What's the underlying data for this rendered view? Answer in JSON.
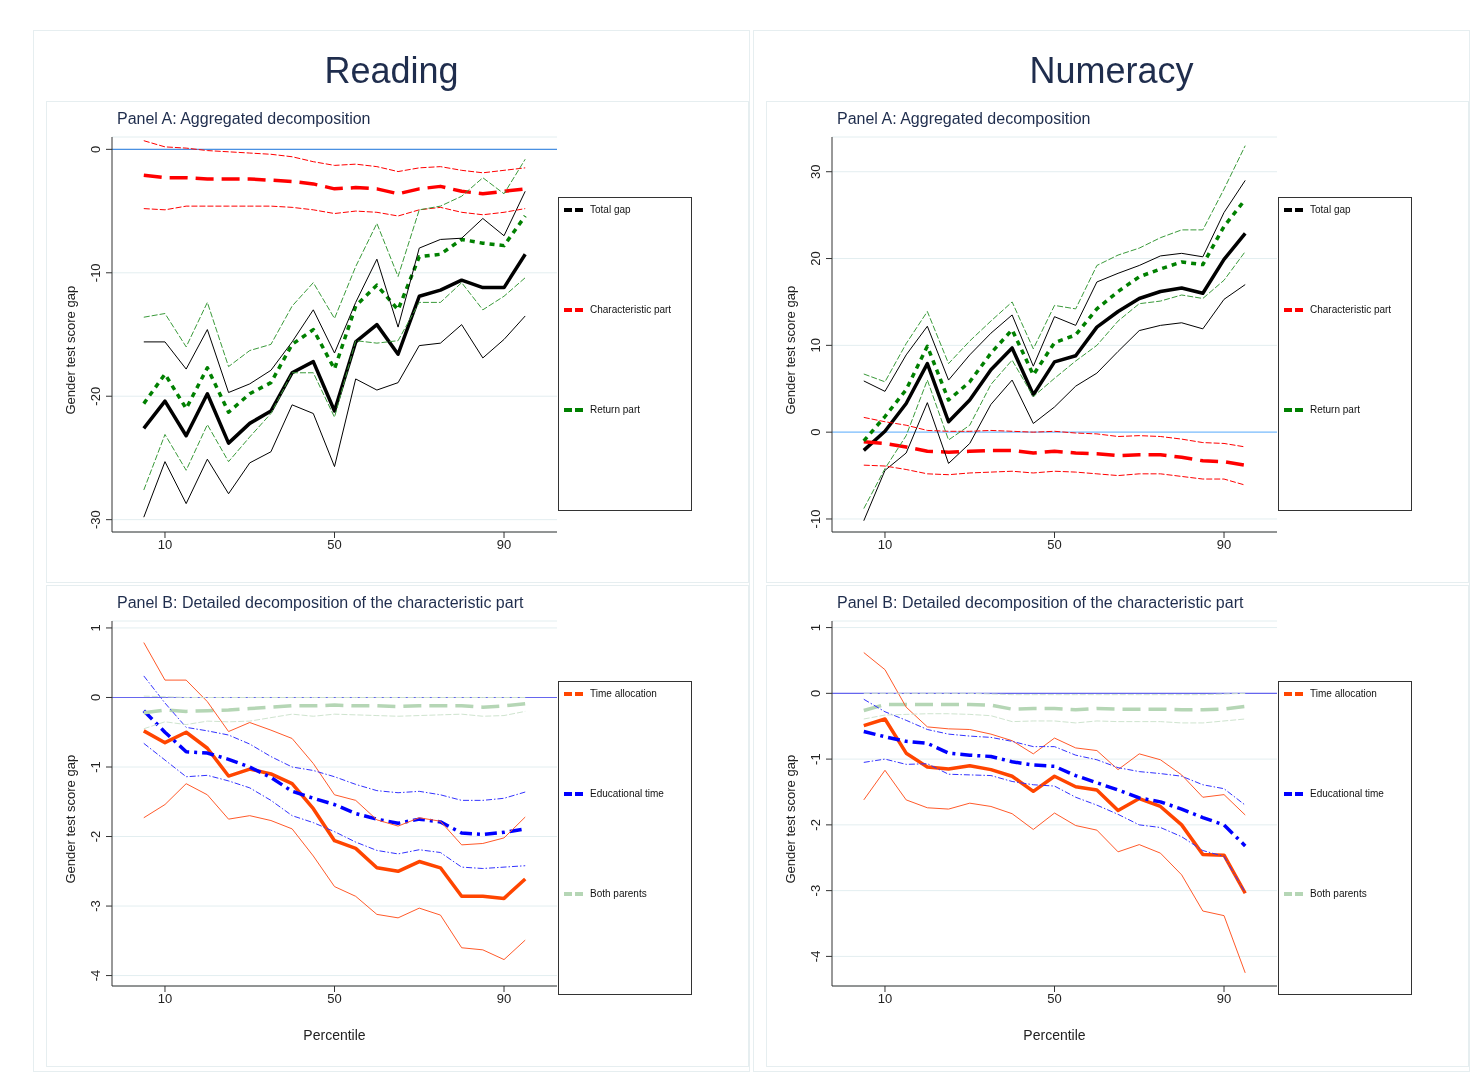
{
  "chart_data": [
    {
      "type": "line",
      "title": "Reading",
      "subtitle": "Panel A: Aggregated decomposition",
      "ylabel": "Gender test score gap",
      "x": [
        5,
        10,
        15,
        20,
        25,
        30,
        35,
        40,
        45,
        50,
        55,
        60,
        65,
        70,
        75,
        80,
        85,
        90,
        95
      ],
      "xlim": [
        -2.5,
        102.5
      ],
      "xticks": [
        10,
        50,
        90
      ],
      "ylim": [
        -31,
        1
      ],
      "yticks": [
        -30,
        -20,
        -10,
        0
      ],
      "grid": "y",
      "legend": "right",
      "ref_lines": [
        {
          "axis": "y",
          "value": 0,
          "color": "#4a90e2"
        }
      ],
      "series": [
        {
          "color": "#000000",
          "line_style": "solid",
          "values": [
            -15.6,
            -15.6,
            -17.8,
            -14.6,
            -19.7,
            -19.0,
            -17.9,
            -15.6,
            -13.0,
            -16.5,
            -12.4,
            -8.9,
            -14.4,
            -8.0,
            -7.3,
            -7.2,
            -5.6,
            -7.0,
            -3.4
          ]
        },
        {
          "color": "#000000",
          "line_style": "solid",
          "values": [
            -29.8,
            -25.3,
            -28.7,
            -25.1,
            -27.9,
            -25.4,
            -24.5,
            -20.7,
            -21.4,
            -25.7,
            -18.6,
            -19.5,
            -18.9,
            -15.9,
            -15.7,
            -14.2,
            -16.9,
            -15.4,
            -13.5
          ]
        },
        {
          "color": "#ff0000",
          "line_style": "dashed",
          "values": [
            0.7,
            0.2,
            0.1,
            -0.1,
            -0.2,
            -0.3,
            -0.4,
            -0.6,
            -1.0,
            -1.3,
            -1.2,
            -1.4,
            -1.8,
            -1.5,
            -1.4,
            -1.7,
            -1.9,
            -1.7,
            -1.5
          ]
        },
        {
          "color": "#ff0000",
          "line_style": "dashed",
          "values": [
            -4.8,
            -4.9,
            -4.6,
            -4.6,
            -4.6,
            -4.6,
            -4.6,
            -4.7,
            -4.9,
            -5.2,
            -5.0,
            -5.1,
            -5.4,
            -4.9,
            -4.7,
            -5.1,
            -5.3,
            -5.1,
            -4.8
          ]
        },
        {
          "color": "#3a9a3a",
          "line_style": "dashed",
          "values": [
            -13.6,
            -13.3,
            -16.0,
            -12.4,
            -17.6,
            -16.3,
            -15.8,
            -12.7,
            -10.8,
            -13.7,
            -9.5,
            -6.0,
            -10.3,
            -4.9,
            -4.6,
            -3.8,
            -2.3,
            -3.6,
            -0.8
          ]
        },
        {
          "color": "#3a9a3a",
          "line_style": "dashed",
          "values": [
            -27.6,
            -23.1,
            -26.0,
            -22.3,
            -25.3,
            -23.3,
            -21.4,
            -18.1,
            -18.1,
            -21.7,
            -15.5,
            -15.7,
            -15.5,
            -12.4,
            -12.4,
            -10.8,
            -13.0,
            -11.9,
            -10.4
          ]
        },
        {
          "name": "Total gap",
          "color": "#000000",
          "line_style": "solid",
          "values": [
            -22.6,
            -20.4,
            -23.2,
            -19.8,
            -23.8,
            -22.2,
            -21.2,
            -18.1,
            -17.2,
            -21.2,
            -15.6,
            -14.2,
            -16.6,
            -11.9,
            -11.4,
            -10.6,
            -11.2,
            -11.2,
            -8.5
          ]
        },
        {
          "name": "Characteristic part",
          "color": "#ff0000",
          "line_style": "dashed",
          "values": [
            -2.1,
            -2.3,
            -2.3,
            -2.4,
            -2.4,
            -2.4,
            -2.5,
            -2.6,
            -2.8,
            -3.2,
            -3.1,
            -3.2,
            -3.6,
            -3.2,
            -3.0,
            -3.4,
            -3.6,
            -3.4,
            -3.2
          ]
        },
        {
          "name": "Return part",
          "color": "#008000",
          "line_style": "dotted",
          "values": [
            -20.6,
            -18.2,
            -21.0,
            -17.7,
            -21.3,
            -19.8,
            -18.9,
            -15.8,
            -14.6,
            -17.8,
            -12.7,
            -11.0,
            -13.0,
            -8.7,
            -8.5,
            -7.3,
            -7.6,
            -7.8,
            -5.4
          ]
        }
      ]
    },
    {
      "type": "line",
      "title": "Numeracy",
      "subtitle": "Panel A: Aggregated decomposition",
      "ylabel": "Gender test score gap",
      "x": [
        5,
        10,
        15,
        20,
        25,
        30,
        35,
        40,
        45,
        50,
        55,
        60,
        65,
        70,
        75,
        80,
        85,
        90,
        95
      ],
      "xlim": [
        -2.5,
        102.5
      ],
      "xticks": [
        10,
        50,
        90
      ],
      "ylim": [
        -11.5,
        34
      ],
      "yticks": [
        -10,
        0,
        10,
        20,
        30
      ],
      "grid": "y",
      "legend": "right",
      "ref_lines": [
        {
          "axis": "y",
          "value": 0,
          "color": "#7fbfff"
        }
      ],
      "series": [
        {
          "color": "#000000",
          "line_style": "solid",
          "values": [
            5.9,
            4.7,
            8.9,
            12.2,
            6.0,
            8.9,
            11.4,
            13.5,
            7.6,
            13.3,
            12.3,
            17.3,
            18.3,
            19.2,
            20.3,
            20.6,
            20.2,
            25.3,
            29.0
          ]
        },
        {
          "color": "#000000",
          "line_style": "solid",
          "values": [
            -10.2,
            -4.4,
            -2.4,
            3.4,
            -3.6,
            -1.3,
            3.2,
            6.0,
            1.0,
            2.9,
            5.3,
            6.8,
            9.3,
            11.7,
            12.3,
            12.6,
            11.9,
            15.3,
            17.0
          ]
        },
        {
          "color": "#ff0000",
          "line_style": "dashed",
          "values": [
            1.7,
            1.2,
            0.8,
            0.2,
            0.1,
            0.1,
            0.2,
            0.1,
            0,
            0.1,
            -0.1,
            -0.2,
            -0.5,
            -0.4,
            -0.5,
            -0.8,
            -1.2,
            -1.3,
            -1.7
          ]
        },
        {
          "color": "#ff0000",
          "line_style": "dashed",
          "values": [
            -3.8,
            -3.9,
            -4.3,
            -4.8,
            -4.9,
            -4.7,
            -4.6,
            -4.5,
            -4.7,
            -4.5,
            -4.6,
            -4.8,
            -5.0,
            -4.8,
            -4.8,
            -5.1,
            -5.4,
            -5.4,
            -6.1
          ]
        },
        {
          "color": "#3a9a3a",
          "line_style": "dashed",
          "values": [
            6.7,
            5.8,
            10.2,
            13.9,
            7.9,
            10.5,
            12.8,
            15.0,
            9.6,
            14.6,
            14.2,
            19.2,
            20.4,
            21.2,
            22.4,
            23.3,
            23.3,
            28.0,
            33.0
          ]
        },
        {
          "color": "#3a9a3a",
          "line_style": "dashed",
          "values": [
            -8.8,
            -4.2,
            -0.4,
            6.0,
            -0.9,
            0.8,
            5.5,
            8.3,
            4.1,
            6.2,
            8.2,
            10.0,
            12.8,
            14.8,
            15.1,
            15.8,
            15.4,
            17.5,
            20.8
          ]
        },
        {
          "name": "Total gap",
          "color": "#000000",
          "line_style": "solid",
          "values": [
            -2.1,
            0.1,
            3.3,
            7.9,
            1.2,
            3.7,
            7.2,
            9.7,
            4.3,
            8.1,
            8.8,
            12.1,
            13.9,
            15.4,
            16.2,
            16.6,
            16.0,
            19.9,
            22.9
          ]
        },
        {
          "name": "Characteristic part",
          "color": "#ff0000",
          "line_style": "dashed",
          "values": [
            -1.1,
            -1.3,
            -1.7,
            -2.2,
            -2.3,
            -2.2,
            -2.1,
            -2.1,
            -2.4,
            -2.2,
            -2.4,
            -2.5,
            -2.7,
            -2.6,
            -2.6,
            -2.9,
            -3.3,
            -3.4,
            -3.8
          ]
        },
        {
          "name": "Return part",
          "color": "#008000",
          "line_style": "dotted",
          "values": [
            -1.0,
            1.8,
            4.9,
            9.9,
            3.7,
            5.8,
            9.1,
            11.8,
            6.6,
            10.3,
            11.2,
            14.2,
            16.2,
            17.9,
            18.8,
            19.6,
            19.3,
            23.7,
            26.8
          ]
        }
      ]
    },
    {
      "type": "line",
      "subtitle": "Panel B: Detailed decomposition of the characteristic part",
      "xlabel": "Percentile",
      "ylabel": "Gender test score gap",
      "x": [
        5,
        10,
        15,
        20,
        25,
        30,
        35,
        40,
        45,
        50,
        55,
        60,
        65,
        70,
        75,
        80,
        85,
        90,
        95
      ],
      "xlim": [
        -2.5,
        102.5
      ],
      "xticks": [
        10,
        50,
        90
      ],
      "ylim": [
        -4.15,
        1.1
      ],
      "yticks": [
        -4,
        -3,
        -2,
        -1,
        0,
        1
      ],
      "grid": "y",
      "legend": "right",
      "ref_lines": [
        {
          "axis": "y",
          "value": 0,
          "color": "#6666ee"
        }
      ],
      "series": [
        {
          "color": "#ff5a2a",
          "line_style": "solid",
          "values": [
            0.79,
            0.25,
            0.25,
            -0.06,
            -0.49,
            -0.36,
            -0.47,
            -0.59,
            -0.95,
            -1.4,
            -1.48,
            -1.76,
            -1.85,
            -1.73,
            -1.78,
            -2.12,
            -2.1,
            -2.02,
            -1.72
          ]
        },
        {
          "color": "#ff5a2a",
          "line_style": "solid",
          "values": [
            -1.73,
            -1.54,
            -1.24,
            -1.4,
            -1.75,
            -1.7,
            -1.77,
            -1.89,
            -2.28,
            -2.72,
            -2.86,
            -3.12,
            -3.17,
            -3.03,
            -3.13,
            -3.6,
            -3.63,
            -3.77,
            -3.49
          ]
        },
        {
          "color": "#3333ff",
          "line_style": "dashdot",
          "values": [
            0.31,
            -0.08,
            -0.43,
            -0.48,
            -0.54,
            -0.67,
            -0.85,
            -1.0,
            -1.05,
            -1.14,
            -1.25,
            -1.34,
            -1.37,
            -1.35,
            -1.4,
            -1.48,
            -1.48,
            -1.45,
            -1.36
          ]
        },
        {
          "color": "#3333ff",
          "line_style": "dashdot",
          "values": [
            -0.66,
            -0.9,
            -1.14,
            -1.12,
            -1.2,
            -1.3,
            -1.48,
            -1.7,
            -1.8,
            -1.93,
            -2.08,
            -2.2,
            -2.25,
            -2.19,
            -2.23,
            -2.44,
            -2.46,
            -2.44,
            -2.42
          ]
        },
        {
          "color": "#cfe4cf",
          "line_style": "dashed",
          "values": [
            0.02,
            0.01,
            0,
            0,
            0,
            0,
            0,
            0,
            0,
            0,
            0,
            0,
            0,
            0,
            0,
            0,
            0,
            0,
            0
          ]
        },
        {
          "color": "#cfe4cf",
          "line_style": "dashed",
          "values": [
            -0.45,
            -0.35,
            -0.39,
            -0.34,
            -0.35,
            -0.34,
            -0.29,
            -0.24,
            -0.27,
            -0.24,
            -0.25,
            -0.26,
            -0.27,
            -0.26,
            -0.25,
            -0.24,
            -0.27,
            -0.26,
            -0.2
          ]
        },
        {
          "name": "Time allocation",
          "color": "#ff4500",
          "line_style": "solid",
          "values": [
            -0.48,
            -0.65,
            -0.5,
            -0.73,
            -1.13,
            -1.03,
            -1.1,
            -1.24,
            -1.6,
            -2.06,
            -2.17,
            -2.45,
            -2.5,
            -2.36,
            -2.45,
            -2.86,
            -2.86,
            -2.89,
            -2.61
          ]
        },
        {
          "name": "Educational time",
          "color": "#0000ff",
          "line_style": "dashdot",
          "values": [
            -0.19,
            -0.5,
            -0.78,
            -0.8,
            -0.89,
            -1.0,
            -1.15,
            -1.35,
            -1.45,
            -1.54,
            -1.67,
            -1.75,
            -1.81,
            -1.75,
            -1.79,
            -1.95,
            -1.97,
            -1.94,
            -1.89
          ]
        },
        {
          "name": "Both parents",
          "color": "#b5d6b5",
          "line_style": "dashed",
          "values": [
            -0.22,
            -0.18,
            -0.2,
            -0.19,
            -0.18,
            -0.16,
            -0.14,
            -0.12,
            -0.12,
            -0.11,
            -0.12,
            -0.12,
            -0.13,
            -0.12,
            -0.12,
            -0.12,
            -0.14,
            -0.12,
            -0.09
          ]
        }
      ]
    },
    {
      "type": "line",
      "subtitle": "Panel B: Detailed decomposition of the characteristic part",
      "xlabel": "Percentile",
      "ylabel": "Gender test score gap",
      "x": [
        5,
        10,
        15,
        20,
        25,
        30,
        35,
        40,
        45,
        50,
        55,
        60,
        65,
        70,
        75,
        80,
        85,
        90,
        95
      ],
      "xlim": [
        -2.5,
        102.5
      ],
      "xticks": [
        10,
        50,
        90
      ],
      "ylim": [
        -4.45,
        1.1
      ],
      "yticks": [
        -4,
        -3,
        -2,
        -1,
        0,
        1
      ],
      "grid": "y",
      "legend": "right",
      "ref_lines": [
        {
          "axis": "y",
          "value": 0,
          "color": "#6666ee"
        }
      ],
      "series": [
        {
          "color": "#ff5a2a",
          "line_style": "solid",
          "values": [
            0.62,
            0.36,
            -0.21,
            -0.51,
            -0.54,
            -0.55,
            -0.62,
            -0.72,
            -0.92,
            -0.68,
            -0.83,
            -0.87,
            -1.16,
            -0.92,
            -1.01,
            -1.24,
            -1.58,
            -1.54,
            -1.85
          ]
        },
        {
          "color": "#ff5a2a",
          "line_style": "solid",
          "values": [
            -1.62,
            -1.17,
            -1.62,
            -1.74,
            -1.76,
            -1.67,
            -1.72,
            -1.83,
            -2.07,
            -1.82,
            -2.01,
            -2.08,
            -2.41,
            -2.3,
            -2.43,
            -2.76,
            -3.31,
            -3.38,
            -4.25
          ]
        },
        {
          "color": "#3333ff",
          "line_style": "dashdot",
          "values": [
            -0.09,
            -0.28,
            -0.41,
            -0.55,
            -0.62,
            -0.65,
            -0.67,
            -0.73,
            -0.81,
            -0.81,
            -0.94,
            -1.01,
            -1.13,
            -1.19,
            -1.22,
            -1.26,
            -1.39,
            -1.45,
            -1.7
          ]
        },
        {
          "color": "#3333ff",
          "line_style": "dashdot",
          "values": [
            -1.05,
            -1.0,
            -1.08,
            -1.07,
            -1.23,
            -1.24,
            -1.25,
            -1.34,
            -1.39,
            -1.41,
            -1.58,
            -1.7,
            -1.84,
            -2.0,
            -2.04,
            -2.18,
            -2.39,
            -2.48,
            -3.03
          ]
        },
        {
          "color": "#cfe4cf",
          "line_style": "dashed",
          "values": [
            0,
            0,
            0,
            0,
            0,
            0,
            -0.01,
            -0.02,
            -0.02,
            -0.02,
            -0.02,
            -0.02,
            -0.02,
            -0.02,
            -0.02,
            -0.02,
            -0.02,
            -0.01,
            0
          ]
        },
        {
          "color": "#cfe4cf",
          "line_style": "dashed",
          "values": [
            -0.39,
            -0.33,
            -0.32,
            -0.31,
            -0.31,
            -0.32,
            -0.34,
            -0.43,
            -0.42,
            -0.42,
            -0.45,
            -0.42,
            -0.43,
            -0.43,
            -0.43,
            -0.45,
            -0.45,
            -0.42,
            -0.39
          ]
        },
        {
          "name": "Time allocation",
          "color": "#ff4500",
          "line_style": "solid",
          "values": [
            -0.49,
            -0.39,
            -0.91,
            -1.12,
            -1.15,
            -1.1,
            -1.16,
            -1.26,
            -1.49,
            -1.26,
            -1.42,
            -1.47,
            -1.78,
            -1.6,
            -1.72,
            -2.0,
            -2.45,
            -2.46,
            -3.04
          ]
        },
        {
          "name": "Educational time",
          "color": "#0000ff",
          "line_style": "dashdot",
          "values": [
            -0.58,
            -0.66,
            -0.73,
            -0.76,
            -0.91,
            -0.94,
            -0.96,
            -1.04,
            -1.09,
            -1.11,
            -1.25,
            -1.36,
            -1.47,
            -1.59,
            -1.65,
            -1.76,
            -1.89,
            -2.0,
            -2.32
          ]
        },
        {
          "name": "Both parents",
          "color": "#b5d6b5",
          "line_style": "dashed",
          "values": [
            -0.26,
            -0.17,
            -0.17,
            -0.17,
            -0.17,
            -0.17,
            -0.18,
            -0.24,
            -0.23,
            -0.23,
            -0.25,
            -0.23,
            -0.24,
            -0.24,
            -0.24,
            -0.25,
            -0.25,
            -0.24,
            -0.2
          ]
        }
      ]
    }
  ]
}
